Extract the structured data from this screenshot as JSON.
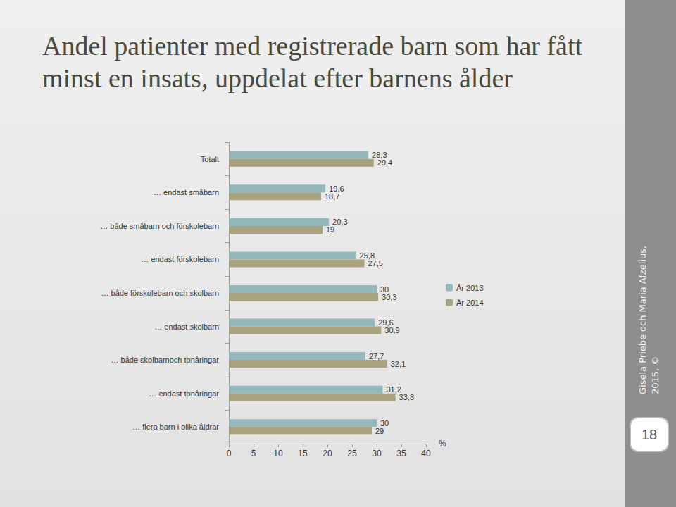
{
  "chart_data": {
    "type": "bar",
    "title": "Andel patienter med registrerade barn som har fått minst en insats, uppdelat efter barnens ålder",
    "orientation": "horizontal",
    "categories": [
      "Totalt",
      "… endast småbarn",
      "… både småbarn och förskolebarn",
      "… endast förskolebarn",
      "… både förskolebarn och skolbarn",
      "… endast skolbarn",
      "… både skolbarnoch tonåringar",
      "… endast tonåringar",
      "… flera barn i olika åldrar"
    ],
    "series": [
      {
        "name": "År 2013",
        "color": "#95b8bc",
        "values": [
          28.3,
          19.6,
          20.3,
          25.8,
          30,
          29.6,
          27.7,
          31.2,
          30
        ],
        "value_labels": [
          "28,3",
          "19,6",
          "20,3",
          "25,8",
          "30",
          "29,6",
          "27,7",
          "31,2",
          "30"
        ]
      },
      {
        "name": "År 2014",
        "color": "#a9a27f",
        "values": [
          29.4,
          18.7,
          19,
          27.5,
          30.3,
          30.9,
          32.1,
          33.8,
          29
        ],
        "value_labels": [
          "29,4",
          "18,7",
          "19",
          "27,5",
          "30,3",
          "30,9",
          "32,1",
          "33,8",
          "29"
        ]
      }
    ],
    "xlabel": "%",
    "xlim": [
      0,
      40
    ],
    "xticks": [
      0,
      5,
      10,
      15,
      20,
      25,
      30,
      35,
      40
    ],
    "grid": false,
    "legend": "right",
    "data_labels": true,
    "annotations": [
      "Gisela Priebe och Maria Afzelius, 2015, ©",
      "18"
    ]
  }
}
